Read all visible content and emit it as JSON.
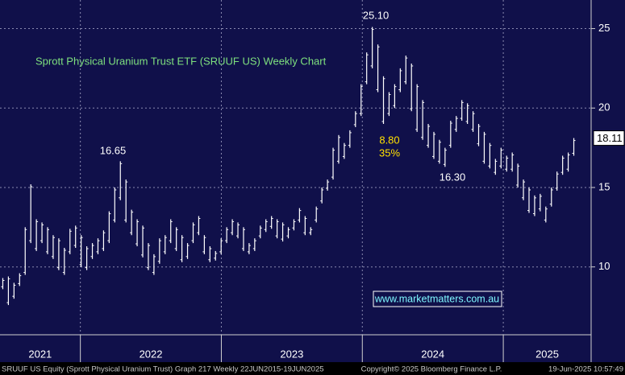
{
  "chart_data": {
    "type": "ohlc",
    "title": "Sprott Physical Uranium Trust ETF (SRUUF US) Weekly Chart",
    "high": [
      9.3,
      9.4,
      9.0,
      9.6,
      12.5,
      15.2,
      13.0,
      12.8,
      12.5,
      12.0,
      11.8,
      11.2,
      12.4,
      12.6,
      12.0,
      11.3,
      11.5,
      11.8,
      12.3,
      13.5,
      15.0,
      16.65,
      15.5,
      13.6,
      13.0,
      12.6,
      11.5,
      10.8,
      11.8,
      12.0,
      13.0,
      12.5,
      12.0,
      11.5,
      12.8,
      13.2,
      12.0,
      11.3,
      11.0,
      11.8,
      12.5,
      13.0,
      12.8,
      12.5,
      11.5,
      11.8,
      12.6,
      13.0,
      13.2,
      13.0,
      12.8,
      12.5,
      13.0,
      13.7,
      13.2,
      12.5,
      13.8,
      15.0,
      15.5,
      17.5,
      18.3,
      17.8,
      18.6,
      19.8,
      21.5,
      23.5,
      25.1,
      24.0,
      22.0,
      21.0,
      21.5,
      22.5,
      23.3,
      22.8,
      21.5,
      20.5,
      19.0,
      18.5,
      18.0,
      17.5,
      19.2,
      19.5,
      20.5,
      20.3,
      19.8,
      19.0,
      18.5,
      17.8,
      16.8,
      17.5,
      17.0,
      17.2,
      16.5,
      15.5,
      15.0,
      14.5,
      14.6,
      13.8,
      15.0,
      16.0,
      17.0,
      17.2,
      18.11
    ],
    "low": [
      8.6,
      7.6,
      8.0,
      8.8,
      9.5,
      11.5,
      11.0,
      11.5,
      10.8,
      10.5,
      9.8,
      9.5,
      10.8,
      11.2,
      10.0,
      9.8,
      10.5,
      10.8,
      11.0,
      11.5,
      12.8,
      14.2,
      12.8,
      12.0,
      11.3,
      10.6,
      9.8,
      9.5,
      10.2,
      10.8,
      11.5,
      11.0,
      10.3,
      10.5,
      11.5,
      12.0,
      10.8,
      10.3,
      10.4,
      10.8,
      11.5,
      12.0,
      11.8,
      11.0,
      10.8,
      11.0,
      11.8,
      12.2,
      12.4,
      11.8,
      11.6,
      11.8,
      12.3,
      12.8,
      12.0,
      12.0,
      12.8,
      14.0,
      14.8,
      15.5,
      16.5,
      16.8,
      17.5,
      18.8,
      19.5,
      21.5,
      22.5,
      21.0,
      19.0,
      19.5,
      20.0,
      21.0,
      21.5,
      19.8,
      18.5,
      18.0,
      17.5,
      16.8,
      16.5,
      16.3,
      17.5,
      18.5,
      19.2,
      19.0,
      18.5,
      17.6,
      16.5,
      16.2,
      15.8,
      16.2,
      16.0,
      16.0,
      15.0,
      14.2,
      13.4,
      13.2,
      13.5,
      12.8,
      13.8,
      14.8,
      15.8,
      16.0,
      17.0
    ],
    "color": "#ffffff",
    "xlim": [
      2021.43,
      2025.52
    ],
    "xticks": [
      {
        "value": 2022,
        "label": "2022"
      },
      {
        "value": 2023,
        "label": "2023"
      },
      {
        "value": 2024,
        "label": "2024"
      },
      {
        "value": 2025,
        "label": "2025"
      }
    ],
    "xlabels": [
      "2021",
      "2022",
      "2023",
      "2024",
      "2025"
    ],
    "ylim": [
      5.73,
      26.8
    ],
    "yticks": [
      10,
      15,
      20,
      25
    ],
    "grid": true,
    "last_price": 18.11,
    "annotations": [
      "25.10",
      "16.65",
      "8.80",
      "35%",
      "16.30"
    ],
    "watermark": "www.marketmatters.com.au",
    "footer": [
      "SRUUF US Equity (Sprott Physical Uranium Trust) Graph 217  Weekly 22JUN2015-19JUN2025",
      "Copyright© 2025 Bloomberg Finance L.P.",
      "19-Jun-2025 10:57:49"
    ]
  }
}
